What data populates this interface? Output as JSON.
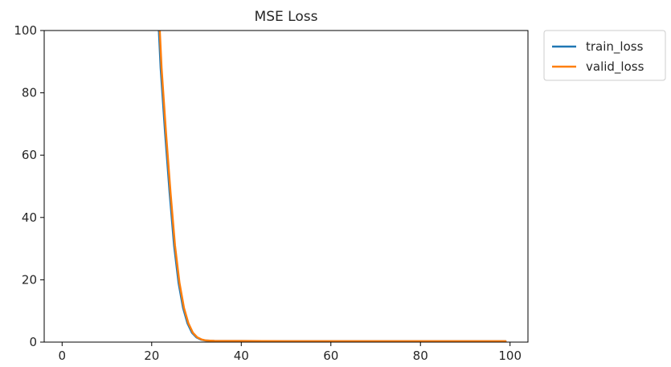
{
  "chart_data": {
    "type": "line",
    "title": "MSE Loss",
    "xlabel": "",
    "ylabel": "",
    "xlim": [
      -4,
      104
    ],
    "ylim": [
      0,
      100
    ],
    "xticks": [
      0,
      20,
      40,
      60,
      80,
      100
    ],
    "yticks": [
      0,
      20,
      40,
      60,
      80,
      100
    ],
    "grid": false,
    "legend_position": "outside-top-right",
    "series": [
      {
        "name": "train_loss",
        "color": "#1f77b4",
        "x": [
          21.6,
          22,
          23,
          24,
          25,
          26,
          27,
          28,
          29,
          30,
          31,
          32,
          34,
          40,
          50,
          60,
          70,
          80,
          90,
          99
        ],
        "y": [
          100,
          88,
          67,
          48,
          31,
          19,
          11,
          6,
          3,
          1.5,
          0.8,
          0.5,
          0.4,
          0.35,
          0.3,
          0.3,
          0.3,
          0.3,
          0.3,
          0.3
        ]
      },
      {
        "name": "valid_loss",
        "color": "#ff7f0e",
        "x": [
          21.8,
          22.2,
          23.2,
          24.2,
          25.2,
          26.2,
          27.2,
          28.2,
          29.2,
          30.2,
          31.2,
          32.2,
          34,
          40,
          50,
          60,
          70,
          80,
          90,
          99
        ],
        "y": [
          100,
          88,
          67,
          48,
          31,
          19,
          11,
          6,
          3,
          1.5,
          0.8,
          0.5,
          0.4,
          0.35,
          0.3,
          0.3,
          0.3,
          0.3,
          0.3,
          0.3
        ]
      }
    ]
  }
}
